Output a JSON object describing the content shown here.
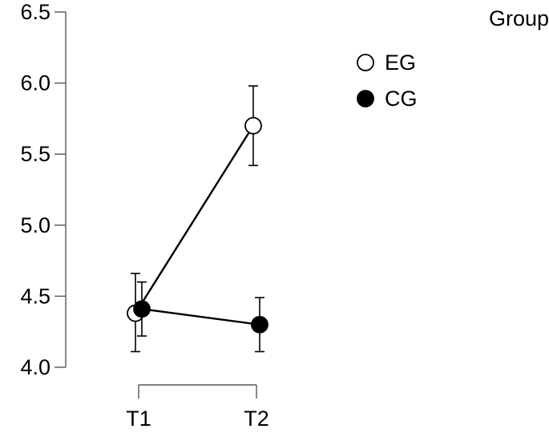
{
  "chart_data": {
    "type": "line",
    "title": "",
    "xlabel": "",
    "ylabel": "",
    "x": [
      "T1",
      "T2"
    ],
    "ylim": [
      4.0,
      6.5
    ],
    "yticks": [
      "4.0",
      "4.5",
      "5.0",
      "5.5",
      "6.0",
      "6.5"
    ],
    "grid": false,
    "legend": {
      "title": "Group",
      "placement": "top-right"
    },
    "series": [
      {
        "name": "EG",
        "marker": "open-circle",
        "color": "#000000",
        "fill": "#ffffff",
        "values": [
          4.38,
          5.7
        ],
        "error_low": [
          4.11,
          5.42
        ],
        "error_high": [
          4.66,
          5.98
        ]
      },
      {
        "name": "CG",
        "marker": "filled-circle",
        "color": "#000000",
        "fill": "#000000",
        "values": [
          4.41,
          4.3
        ],
        "error_low": [
          4.22,
          4.11
        ],
        "error_high": [
          4.6,
          4.49
        ]
      }
    ]
  }
}
